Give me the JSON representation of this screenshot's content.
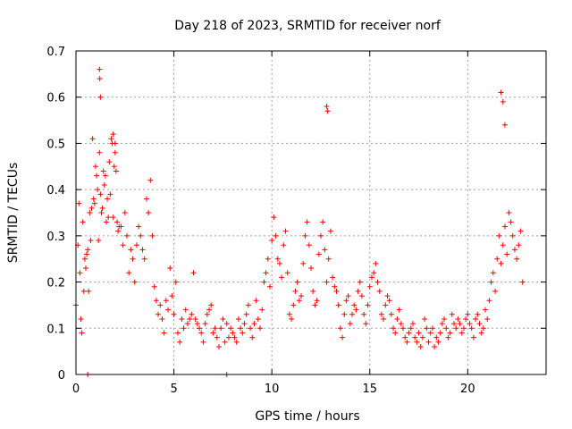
{
  "chart_data": {
    "type": "scatter",
    "title": "Day 218 of 2023, SRMTID for receiver norf",
    "xlabel": "GPS time / hours",
    "ylabel": "SRMTID / TECUs",
    "xlim": [
      0,
      24
    ],
    "ylim": [
      0,
      0.7
    ],
    "x_ticks": [
      0,
      5,
      10,
      15,
      20
    ],
    "x_tick_labels": [
      "0",
      "5",
      "10",
      "15",
      "20"
    ],
    "y_ticks": [
      0,
      0.1,
      0.2,
      0.3,
      0.4,
      0.5,
      0.6,
      0.7
    ],
    "y_tick_labels": [
      "0",
      "0.1",
      "0.2",
      "0.3",
      "0.4",
      "0.5",
      "0.6",
      "0.7"
    ],
    "grid": true,
    "marker": "+",
    "series": [
      {
        "name": "SRMTID",
        "color": "#ff0000",
        "x": [
          0.0,
          0.1,
          0.15,
          0.2,
          0.25,
          0.3,
          0.35,
          0.4,
          0.45,
          0.5,
          0.55,
          0.6,
          0.65,
          0.7,
          0.75,
          0.8,
          0.85,
          0.9,
          0.95,
          1.0,
          1.05,
          1.1,
          1.15,
          1.2,
          1.25,
          1.3,
          1.35,
          1.4,
          1.45,
          1.5,
          1.55,
          1.6,
          1.65,
          1.7,
          1.75,
          1.8,
          1.85,
          1.9,
          1.95,
          2.0,
          2.05,
          2.1,
          2.15,
          2.2,
          2.3,
          2.4,
          2.5,
          2.6,
          2.7,
          2.8,
          2.9,
          3.0,
          3.1,
          3.2,
          3.3,
          3.4,
          3.5,
          3.6,
          3.7,
          3.8,
          3.9,
          4.0,
          4.1,
          4.2,
          4.3,
          4.4,
          4.5,
          4.6,
          4.7,
          4.8,
          4.9,
          5.0,
          5.1,
          5.2,
          5.3,
          5.4,
          5.5,
          5.6,
          5.7,
          5.8,
          5.9,
          6.0,
          6.1,
          6.2,
          6.3,
          6.4,
          6.5,
          6.6,
          6.7,
          6.8,
          6.9,
          7.0,
          7.1,
          7.2,
          7.3,
          7.4,
          7.5,
          7.6,
          7.7,
          7.8,
          7.9,
          8.0,
          8.1,
          8.2,
          8.3,
          8.4,
          8.5,
          8.6,
          8.7,
          8.8,
          8.9,
          9.0,
          9.1,
          9.2,
          9.3,
          9.4,
          9.5,
          9.6,
          9.7,
          9.8,
          9.9,
          10.0,
          10.1,
          10.2,
          10.3,
          10.4,
          10.5,
          10.6,
          10.7,
          10.8,
          10.9,
          11.0,
          11.1,
          11.2,
          11.3,
          11.4,
          11.5,
          11.6,
          11.7,
          11.8,
          11.9,
          12.0,
          12.1,
          12.2,
          12.3,
          12.4,
          12.5,
          12.6,
          12.7,
          12.8,
          12.9,
          13.0,
          13.1,
          13.2,
          13.3,
          13.4,
          13.5,
          13.6,
          13.7,
          13.8,
          13.9,
          14.0,
          14.1,
          14.2,
          14.3,
          14.4,
          14.5,
          14.6,
          14.7,
          14.8,
          14.9,
          15.0,
          15.1,
          15.2,
          15.3,
          15.4,
          15.5,
          15.6,
          15.7,
          15.8,
          15.9,
          16.0,
          16.1,
          16.2,
          16.3,
          16.4,
          16.5,
          16.6,
          16.7,
          16.8,
          16.9,
          17.0,
          17.1,
          17.2,
          17.3,
          17.4,
          17.5,
          17.6,
          17.7,
          17.8,
          17.9,
          18.0,
          18.1,
          18.2,
          18.3,
          18.4,
          18.5,
          18.6,
          18.7,
          18.8,
          18.9,
          19.0,
          19.1,
          19.2,
          19.3,
          19.4,
          19.5,
          19.6,
          19.7,
          19.8,
          19.9,
          20.0,
          20.1,
          20.2,
          20.3,
          20.4,
          20.5,
          20.6,
          20.7,
          20.8,
          20.9,
          21.0,
          21.1,
          21.2,
          21.3,
          21.4,
          21.5,
          21.6,
          21.7,
          21.8,
          21.9,
          22.0,
          22.1,
          22.2,
          22.3,
          22.4,
          22.5,
          22.6,
          22.7,
          22.8,
          1.2,
          1.22,
          1.25,
          1.9,
          2.0,
          12.8,
          12.85,
          21.7,
          21.8,
          21.9,
          0.6,
          7.7
        ],
        "y": [
          0.15,
          0.28,
          0.37,
          0.22,
          0.12,
          0.09,
          0.33,
          0.18,
          0.25,
          0.23,
          0.26,
          0.27,
          0.18,
          0.35,
          0.29,
          0.36,
          0.51,
          0.38,
          0.37,
          0.45,
          0.43,
          0.4,
          0.29,
          0.48,
          0.39,
          0.35,
          0.36,
          0.44,
          0.41,
          0.43,
          0.33,
          0.38,
          0.34,
          0.46,
          0.39,
          0.51,
          0.5,
          0.34,
          0.45,
          0.48,
          0.44,
          0.33,
          0.31,
          0.32,
          0.32,
          0.28,
          0.35,
          0.3,
          0.22,
          0.27,
          0.25,
          0.2,
          0.28,
          0.32,
          0.3,
          0.27,
          0.25,
          0.38,
          0.35,
          0.42,
          0.3,
          0.19,
          0.16,
          0.13,
          0.15,
          0.12,
          0.09,
          0.16,
          0.14,
          0.23,
          0.17,
          0.13,
          0.2,
          0.09,
          0.07,
          0.12,
          0.1,
          0.14,
          0.11,
          0.12,
          0.13,
          0.22,
          0.12,
          0.11,
          0.1,
          0.09,
          0.07,
          0.11,
          0.13,
          0.14,
          0.15,
          0.09,
          0.1,
          0.08,
          0.06,
          0.1,
          0.12,
          0.07,
          0.11,
          0.08,
          0.1,
          0.09,
          0.08,
          0.07,
          0.12,
          0.1,
          0.09,
          0.11,
          0.13,
          0.15,
          0.1,
          0.08,
          0.11,
          0.16,
          0.12,
          0.1,
          0.14,
          0.2,
          0.22,
          0.25,
          0.19,
          0.29,
          0.34,
          0.3,
          0.25,
          0.24,
          0.21,
          0.28,
          0.31,
          0.22,
          0.13,
          0.12,
          0.15,
          0.18,
          0.2,
          0.16,
          0.17,
          0.24,
          0.3,
          0.33,
          0.28,
          0.23,
          0.18,
          0.15,
          0.16,
          0.26,
          0.3,
          0.33,
          0.27,
          0.2,
          0.25,
          0.31,
          0.21,
          0.19,
          0.18,
          0.15,
          0.1,
          0.08,
          0.13,
          0.16,
          0.17,
          0.11,
          0.13,
          0.15,
          0.14,
          0.18,
          0.2,
          0.17,
          0.13,
          0.11,
          0.15,
          0.19,
          0.21,
          0.22,
          0.24,
          0.2,
          0.18,
          0.13,
          0.12,
          0.15,
          0.17,
          0.16,
          0.13,
          0.1,
          0.09,
          0.12,
          0.14,
          0.11,
          0.1,
          0.08,
          0.07,
          0.09,
          0.1,
          0.11,
          0.08,
          0.07,
          0.09,
          0.06,
          0.08,
          0.12,
          0.1,
          0.07,
          0.09,
          0.1,
          0.06,
          0.08,
          0.07,
          0.09,
          0.11,
          0.12,
          0.1,
          0.08,
          0.09,
          0.13,
          0.11,
          0.1,
          0.12,
          0.11,
          0.09,
          0.1,
          0.12,
          0.13,
          0.11,
          0.1,
          0.08,
          0.12,
          0.13,
          0.11,
          0.09,
          0.1,
          0.14,
          0.12,
          0.16,
          0.2,
          0.22,
          0.18,
          0.25,
          0.3,
          0.24,
          0.28,
          0.32,
          0.26,
          0.35,
          0.33,
          0.3,
          0.27,
          0.25,
          0.28,
          0.31,
          0.2,
          0.66,
          0.64,
          0.6,
          0.52,
          0.5,
          0.58,
          0.57,
          0.61,
          0.59,
          0.54,
          0.0,
          0.0
        ]
      }
    ]
  }
}
